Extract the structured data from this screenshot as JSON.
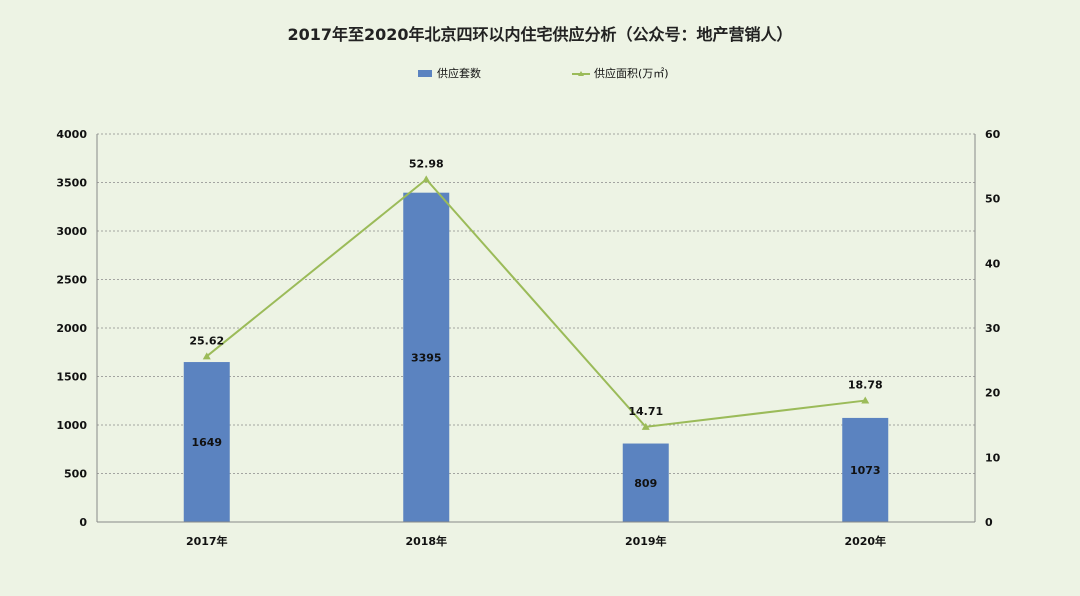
{
  "chart_data": {
    "type": "bar",
    "title": "2017年至2020年北京四环以内住宅供应分析（公众号：地产营销人）",
    "categories": [
      "2017年",
      "2018年",
      "2019年",
      "2020年"
    ],
    "series": [
      {
        "name": "供应套数",
        "kind": "bar",
        "axis": "left",
        "values": [
          1649,
          3395,
          809,
          1073
        ],
        "labels": [
          "1649",
          "3395",
          "809",
          "1073"
        ]
      },
      {
        "name": "供应面积(万㎡)",
        "kind": "line",
        "axis": "right",
        "values": [
          25.62,
          52.98,
          14.71,
          18.78
        ],
        "labels": [
          "25.62",
          "52.98",
          "14.71",
          "18.78"
        ]
      }
    ],
    "y_left": {
      "range": [
        0,
        4000
      ],
      "ticks": [
        "0",
        "500",
        "1000",
        "1500",
        "2000",
        "2500",
        "3000",
        "3500",
        "4000"
      ]
    },
    "y_right": {
      "range": [
        0,
        60
      ],
      "ticks": [
        "0",
        "10",
        "20",
        "30",
        "40",
        "50",
        "60"
      ]
    },
    "grid": true,
    "legend": "top",
    "colors": {
      "bar": "#5b83c0",
      "line": "#9bbb59",
      "background": "#edf3e4"
    }
  }
}
